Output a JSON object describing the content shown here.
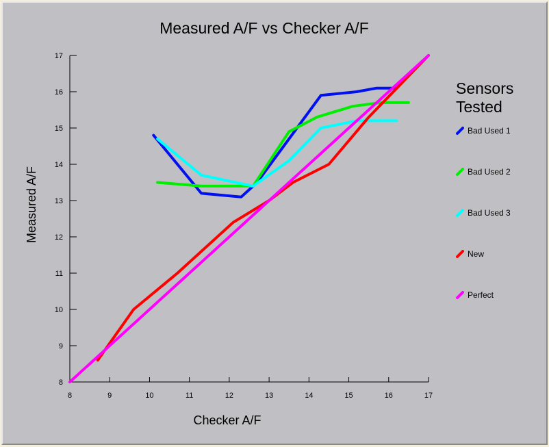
{
  "chart_data": {
    "type": "line",
    "title": "Measured A/F vs Checker A/F",
    "xlabel": "Checker A/F",
    "ylabel": "Measured A/F",
    "xlim": [
      8,
      17
    ],
    "ylim": [
      8,
      17
    ],
    "x_ticks": [
      "8",
      "9",
      "10",
      "11",
      "12",
      "13",
      "14",
      "15",
      "16",
      "17"
    ],
    "y_ticks": [
      "8",
      "9",
      "10",
      "11",
      "12",
      "13",
      "14",
      "15",
      "16",
      "17"
    ],
    "grid": false,
    "legend_title": "Sensors Tested",
    "legend_position": "right",
    "series": [
      {
        "name": "Bad Used 1",
        "color": "#0010ee",
        "points": [
          [
            10.1,
            14.8
          ],
          [
            11.3,
            13.2
          ],
          [
            12.3,
            13.1
          ],
          [
            12.7,
            13.5
          ],
          [
            13.5,
            14.7
          ],
          [
            14.3,
            15.9
          ],
          [
            15.2,
            16.0
          ],
          [
            15.7,
            16.1
          ],
          [
            16.2,
            16.1
          ]
        ]
      },
      {
        "name": "Bad Used 2",
        "color": "#00ee00",
        "points": [
          [
            10.2,
            13.5
          ],
          [
            11.3,
            13.4
          ],
          [
            12.6,
            13.4
          ],
          [
            13.5,
            14.9
          ],
          [
            14.2,
            15.3
          ],
          [
            15.1,
            15.6
          ],
          [
            15.8,
            15.7
          ],
          [
            16.5,
            15.7
          ]
        ]
      },
      {
        "name": "Bad Used 3",
        "color": "#00ffff",
        "points": [
          [
            10.2,
            14.7
          ],
          [
            11.3,
            13.7
          ],
          [
            12.6,
            13.4
          ],
          [
            13.5,
            14.1
          ],
          [
            14.3,
            15.0
          ],
          [
            15.2,
            15.2
          ],
          [
            16.2,
            15.2
          ]
        ]
      },
      {
        "name": "New",
        "color": "#ff0000",
        "points": [
          [
            8.7,
            8.6
          ],
          [
            9.6,
            10.0
          ],
          [
            10.7,
            11.0
          ],
          [
            12.1,
            12.4
          ],
          [
            13.0,
            13.0
          ],
          [
            13.6,
            13.5
          ],
          [
            14.5,
            14.0
          ],
          [
            15.5,
            15.3
          ],
          [
            17.0,
            17.0
          ]
        ]
      },
      {
        "name": "Perfect",
        "color": "#ff00ff",
        "points": [
          [
            8,
            8
          ],
          [
            17,
            17
          ]
        ]
      }
    ]
  }
}
